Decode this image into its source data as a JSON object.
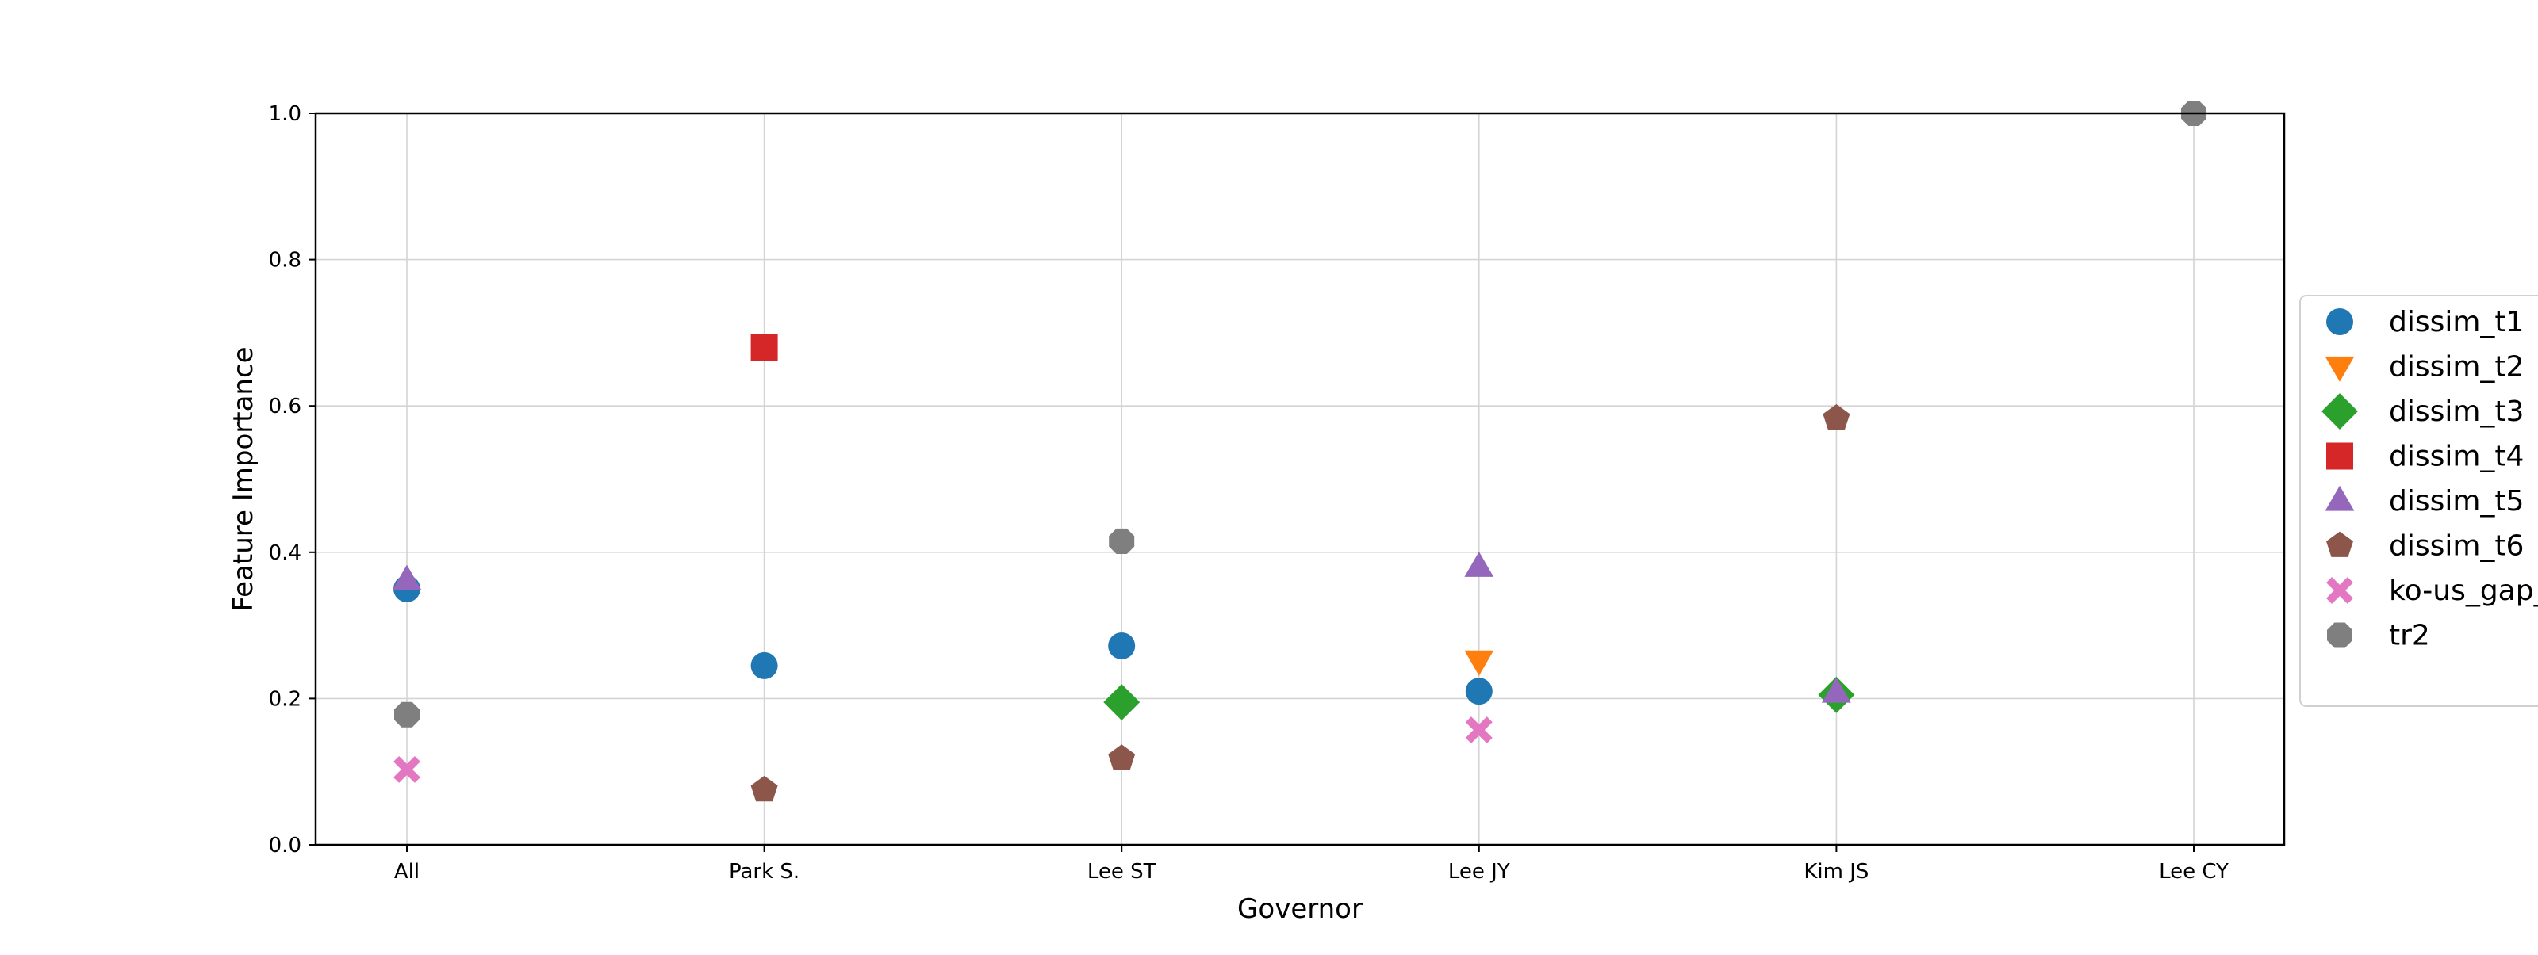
{
  "chart_data": {
    "type": "scatter",
    "title": "",
    "xlabel": "Governor",
    "ylabel": "Feature Importance",
    "categories": [
      "All",
      "Park S.",
      "Lee ST",
      "Lee JY",
      "Kim JS",
      "Lee CY"
    ],
    "ylim": [
      0.0,
      1.0
    ],
    "yticks": [
      "0.0",
      "0.2",
      "0.4",
      "0.6",
      "0.8",
      "1.0"
    ],
    "grid": true,
    "legend_position": "right (outside plot, partially cropped)",
    "series": [
      {
        "name": "dissim_t1",
        "marker": "circle",
        "color": "#1f77b4",
        "points": [
          {
            "x": "All",
            "y": 0.35
          },
          {
            "x": "Park S.",
            "y": 0.245
          },
          {
            "x": "Lee ST",
            "y": 0.272
          },
          {
            "x": "Lee JY",
            "y": 0.21
          }
        ]
      },
      {
        "name": "dissim_t2",
        "marker": "triangle-down",
        "color": "#ff7f0e",
        "points": [
          {
            "x": "Lee JY",
            "y": 0.252
          }
        ]
      },
      {
        "name": "dissim_t3",
        "marker": "diamond",
        "color": "#2ca02c",
        "points": [
          {
            "x": "Lee ST",
            "y": 0.195
          },
          {
            "x": "Kim JS",
            "y": 0.205
          }
        ]
      },
      {
        "name": "dissim_t4",
        "marker": "square",
        "color": "#d62728",
        "points": [
          {
            "x": "Park S.",
            "y": 0.68
          }
        ]
      },
      {
        "name": "dissim_t5",
        "marker": "triangle-up",
        "color": "#9467bd",
        "points": [
          {
            "x": "All",
            "y": 0.362
          },
          {
            "x": "Lee JY",
            "y": 0.38
          },
          {
            "x": "Kim JS",
            "y": 0.208
          }
        ]
      },
      {
        "name": "dissim_t6",
        "marker": "pentagon",
        "color": "#8c564b",
        "points": [
          {
            "x": "Park S.",
            "y": 0.075
          },
          {
            "x": "Lee ST",
            "y": 0.118
          },
          {
            "x": "Kim JS",
            "y": 0.583
          }
        ]
      },
      {
        "name": "ko-us_gap_",
        "marker": "x-filled",
        "color": "#e377c2",
        "points": [
          {
            "x": "All",
            "y": 0.103
          },
          {
            "x": "Lee JY",
            "y": 0.157
          }
        ]
      },
      {
        "name": "tr2",
        "marker": "octagon",
        "color": "#7f7f7f",
        "points": [
          {
            "x": "All",
            "y": 0.178
          },
          {
            "x": "Lee ST",
            "y": 0.415
          },
          {
            "x": "Lee CY",
            "y": 1.0
          }
        ]
      }
    ]
  }
}
